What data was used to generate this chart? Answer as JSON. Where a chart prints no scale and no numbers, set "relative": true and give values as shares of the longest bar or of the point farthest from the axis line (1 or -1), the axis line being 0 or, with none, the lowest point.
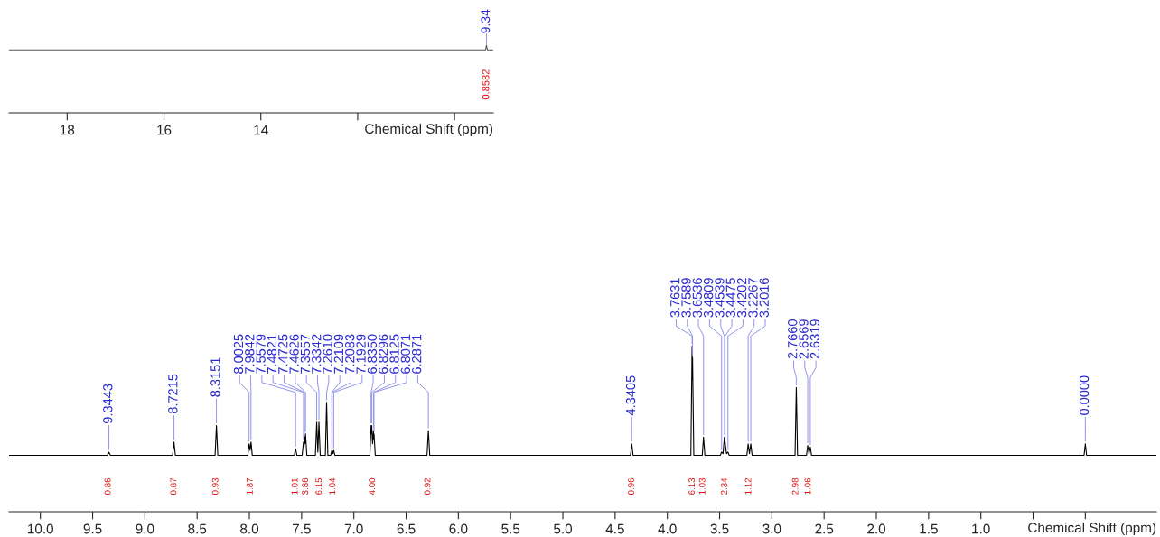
{
  "chart_data": [
    {
      "type": "line",
      "relative": true,
      "xlabel": "Chemical Shift (ppm)",
      "xlim": [
        19.2,
        9.2
      ],
      "xticks": [
        18,
        16,
        14,
        {
          "value": 12,
          "label": null
        },
        {
          "value": 10,
          "label": null
        }
      ],
      "series": [
        {
          "color": "#555555",
          "x": [
            19.2,
            9.5,
            9.36,
            9.34,
            9.32,
            9.2
          ],
          "values": [
            0.93,
            0.93,
            0.93,
            1,
            0.93,
            0.93
          ]
        }
      ],
      "annotations": [
        {
          "text": "9.34",
          "x": 9.34,
          "y": 1
        },
        {
          "text": "0.8582",
          "x": 9.34,
          "y": 0.93
        }
      ]
    },
    {
      "type": "line",
      "relative": true,
      "xlabel": "Chemical Shift (ppm)",
      "xlim": [
        10.3,
        -0.68
      ],
      "xticks": [
        {
          "value": 10,
          "label": "10.0"
        },
        {
          "value": 9.5,
          "label": "9.5"
        },
        {
          "value": 9,
          "label": "9.0"
        },
        {
          "value": 8.5,
          "label": "8.5"
        },
        {
          "value": 8,
          "label": "8.0"
        },
        {
          "value": 7.5,
          "label": "7.5"
        },
        {
          "value": 7,
          "label": "7.0"
        },
        {
          "value": 6.5,
          "label": "6.5"
        },
        {
          "value": 6,
          "label": "6.0"
        },
        {
          "value": 5.5,
          "label": "5.5"
        },
        {
          "value": 5,
          "label": "5.0"
        },
        {
          "value": 4.5,
          "label": "4.5"
        },
        {
          "value": 4,
          "label": "4.0"
        },
        {
          "value": 3.5,
          "label": "3.5"
        },
        {
          "value": 3,
          "label": "3.0"
        },
        {
          "value": 2.5,
          "label": "2.5"
        },
        {
          "value": 2,
          "label": "2.0"
        },
        {
          "value": 1.5,
          "label": "1.5"
        },
        {
          "value": 1,
          "label": "1.0"
        },
        {
          "value": 0.5,
          "label": null
        },
        {
          "value": 0,
          "label": null
        }
      ],
      "series": [
        {
          "color": "#000000",
          "x": [
            10.3,
            9.36,
            9.3443,
            9.33,
            8.735,
            8.7215,
            8.708,
            8.328,
            8.3151,
            8.302,
            8.015,
            8.0025,
            7.993,
            7.9842,
            7.972,
            7.57,
            7.5579,
            7.545,
            7.495,
            7.4821,
            7.4773,
            7.4725,
            7.4676,
            7.4626,
            7.45,
            7.368,
            7.3557,
            7.345,
            7.3342,
            7.322,
            7.273,
            7.261,
            7.249,
            7.222,
            7.2109,
            7.2096,
            7.2083,
            7.2006,
            7.1929,
            7.181,
            6.847,
            6.835,
            6.8323,
            6.8296,
            6.821,
            6.8125,
            6.8098,
            6.8071,
            6.795,
            6.3,
            6.2871,
            6.274,
            4.353,
            4.3405,
            4.328,
            3.775,
            3.7631,
            3.761,
            3.7589,
            3.747,
            3.666,
            3.6536,
            3.641,
            3.493,
            3.4809,
            3.4674,
            3.4539,
            3.4507,
            3.4475,
            3.4339,
            3.4202,
            3.408,
            3.239,
            3.2267,
            3.2142,
            3.2016,
            3.189,
            2.778,
            2.766,
            2.754,
            2.669,
            2.6569,
            2.6444,
            2.6319,
            2.62,
            0.012,
            0.0,
            -0.012,
            -0.68
          ],
          "values": [
            0.34,
            0.34,
            0.36,
            0.34,
            0.34,
            0.42,
            0.34,
            0.34,
            0.52,
            0.34,
            0.34,
            0.41,
            0.37,
            0.42,
            0.34,
            0.34,
            0.38,
            0.34,
            0.34,
            0.42,
            0.39,
            0.45,
            0.41,
            0.47,
            0.34,
            0.34,
            0.54,
            0.36,
            0.54,
            0.34,
            0.34,
            0.66,
            0.34,
            0.34,
            0.37,
            0.37,
            0.37,
            0.35,
            0.37,
            0.34,
            0.34,
            0.52,
            0.47,
            0.52,
            0.41,
            0.49,
            0.44,
            0.47,
            0.34,
            0.34,
            0.49,
            0.34,
            0.34,
            0.41,
            0.34,
            0.34,
            1,
            0.8,
            0.93,
            0.34,
            0.34,
            0.45,
            0.34,
            0.34,
            0.36,
            0.35,
            0.45,
            0.41,
            0.42,
            0.35,
            0.36,
            0.34,
            0.34,
            0.41,
            0.35,
            0.41,
            0.34,
            0.34,
            0.75,
            0.34,
            0.34,
            0.4,
            0.35,
            0.39,
            0.34,
            0.34,
            0.41,
            0.34,
            0.34
          ]
        }
      ],
      "annotations": [
        {
          "text": "9.3443",
          "x": 9.3443,
          "y": 0.36
        },
        {
          "text": "8.7215",
          "x": 8.7215,
          "y": 0.42
        },
        {
          "text": "8.3151",
          "x": 8.3151,
          "y": 0.52
        },
        {
          "text": "8.0025",
          "x": 8.0025,
          "y": 0.41
        },
        {
          "text": "7.9842",
          "x": 7.9842,
          "y": 0.42
        },
        {
          "text": "7.5579",
          "x": 7.5579,
          "y": 0.38
        },
        {
          "text": "7.4821",
          "x": 7.4821,
          "y": 0.42
        },
        {
          "text": "7.4725",
          "x": 7.4725,
          "y": 0.45
        },
        {
          "text": "7.4626",
          "x": 7.4626,
          "y": 0.47
        },
        {
          "text": "7.3557",
          "x": 7.3557,
          "y": 0.54
        },
        {
          "text": "7.3342",
          "x": 7.3342,
          "y": 0.54
        },
        {
          "text": "7.2610",
          "x": 7.261,
          "y": 0.66
        },
        {
          "text": "7.2109",
          "x": 7.2109,
          "y": 0.37
        },
        {
          "text": "7.2083",
          "x": 7.2083,
          "y": 0.37
        },
        {
          "text": "7.1929",
          "x": 7.1929,
          "y": 0.37
        },
        {
          "text": "6.8350",
          "x": 6.835,
          "y": 0.52
        },
        {
          "text": "6.8296",
          "x": 6.8296,
          "y": 0.52
        },
        {
          "text": "6.8125",
          "x": 6.8125,
          "y": 0.49
        },
        {
          "text": "6.8071",
          "x": 6.8071,
          "y": 0.47
        },
        {
          "text": "6.2871",
          "x": 6.2871,
          "y": 0.49
        },
        {
          "text": "4.3405",
          "x": 4.3405,
          "y": 0.41
        },
        {
          "text": "3.7631",
          "x": 3.7631,
          "y": 1
        },
        {
          "text": "3.7589",
          "x": 3.7589,
          "y": 0.93
        },
        {
          "text": "3.6536",
          "x": 3.6536,
          "y": 0.45
        },
        {
          "text": "3.4809",
          "x": 3.4809,
          "y": 0.36
        },
        {
          "text": "3.4539",
          "x": 3.4539,
          "y": 0.45
        },
        {
          "text": "3.4475",
          "x": 3.4475,
          "y": 0.42
        },
        {
          "text": "3.4202",
          "x": 3.4202,
          "y": 0.36
        },
        {
          "text": "3.2267",
          "x": 3.2267,
          "y": 0.41
        },
        {
          "text": "3.2016",
          "x": 3.2016,
          "y": 0.41
        },
        {
          "text": "2.7660",
          "x": 2.766,
          "y": 0.75
        },
        {
          "text": "2.6569",
          "x": 2.6569,
          "y": 0.4
        },
        {
          "text": "2.6319",
          "x": 2.6319,
          "y": 0.39
        },
        {
          "text": "0.0000",
          "x": 0.0,
          "y": 0.41
        },
        {
          "text": "0.86",
          "x": 9.35,
          "y": 0.34
        },
        {
          "text": "0.87",
          "x": 8.72,
          "y": 0.34
        },
        {
          "text": "0.93",
          "x": 8.32,
          "y": 0.34
        },
        {
          "text": "1.87",
          "x": 7.99,
          "y": 0.34
        },
        {
          "text": "1.01",
          "x": 7.56,
          "y": 0.34
        },
        {
          "text": "3.86",
          "x": 7.46,
          "y": 0.34
        },
        {
          "text": "6.15",
          "x": 7.33,
          "y": 0.34
        },
        {
          "text": "1.04",
          "x": 7.2,
          "y": 0.34
        },
        {
          "text": "4.00",
          "x": 6.82,
          "y": 0.34
        },
        {
          "text": "0.92",
          "x": 6.29,
          "y": 0.34
        },
        {
          "text": "0.96",
          "x": 4.34,
          "y": 0.34
        },
        {
          "text": "6.13",
          "x": 3.76,
          "y": 0.34
        },
        {
          "text": "1.03",
          "x": 3.66,
          "y": 0.34
        },
        {
          "text": "2.34",
          "x": 3.45,
          "y": 0.34
        },
        {
          "text": "1.12",
          "x": 3.22,
          "y": 0.34
        },
        {
          "text": "2.98",
          "x": 2.77,
          "y": 0.34
        },
        {
          "text": "1.06",
          "x": 2.65,
          "y": 0.34
        }
      ]
    }
  ]
}
